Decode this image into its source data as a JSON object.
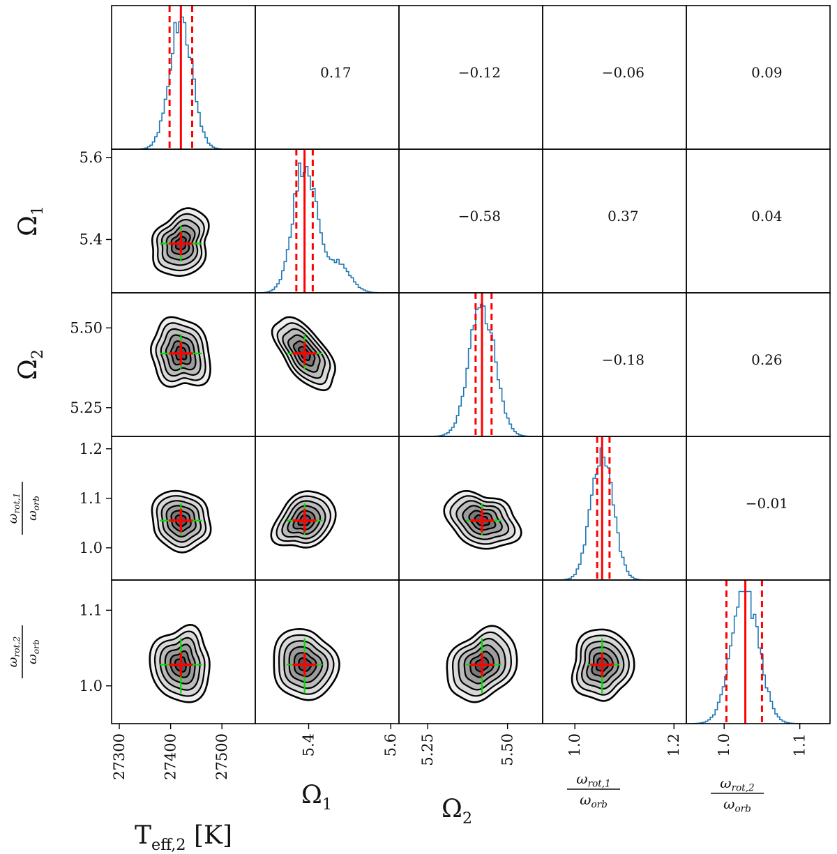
{
  "chart_data": {
    "type": "corner",
    "parameters": [
      {
        "key": "teff2",
        "label_main": "T",
        "label_sub": "eff,2",
        "label_unit": "[K]",
        "range": [
          27285,
          27565
        ],
        "ticks": [
          27300,
          27400,
          27500
        ],
        "tick_labels": [
          "27300",
          "27400",
          "27500"
        ],
        "median": 27420,
        "lower": 27398,
        "upper": 27442,
        "sigma": 22
      },
      {
        "key": "omega1",
        "label_main": "Ω",
        "label_sub": "1",
        "range": [
          5.27,
          5.62
        ],
        "ticks": [
          5.4,
          5.6
        ],
        "tick_labels": [
          "5.4",
          "5.6"
        ],
        "median": 5.39,
        "lower": 5.37,
        "upper": 5.41,
        "sigma": 0.028
      },
      {
        "key": "omega2",
        "label_main": "Ω",
        "label_sub": "2",
        "range": [
          5.16,
          5.61
        ],
        "ticks": [
          5.25,
          5.5
        ],
        "tick_labels": [
          "5.25",
          "5.50"
        ],
        "median": 5.42,
        "lower": 5.4,
        "upper": 5.45,
        "sigma": 0.04
      },
      {
        "key": "wrot1",
        "label_frac_num": "ω",
        "label_frac_num_sub": "rot,1",
        "label_frac_den": "ω",
        "label_frac_den_sub": "orb",
        "range": [
          0.935,
          1.225
        ],
        "ticks": [
          1.0,
          1.2
        ],
        "tick_labels": [
          "1.0",
          "1.2"
        ],
        "y_ticks": [
          1.0,
          1.1,
          1.2
        ],
        "y_tick_labels": [
          "1.0",
          "1.1",
          "1.2"
        ],
        "median": 1.055,
        "lower": 1.045,
        "upper": 1.07,
        "sigma": 0.022
      },
      {
        "key": "wrot2",
        "label_frac_num": "ω",
        "label_frac_num_sub": "rot,2",
        "label_frac_den": "ω",
        "label_frac_den_sub": "orb",
        "range": [
          0.95,
          1.14
        ],
        "ticks": [
          1.0,
          1.1
        ],
        "tick_labels": [
          "1.0",
          "1.1"
        ],
        "y_ticks": [
          1.0,
          1.1
        ],
        "y_tick_labels": [
          "1.0",
          "1.1"
        ],
        "median": 1.028,
        "lower": 1.003,
        "upper": 1.05,
        "sigma": 0.018
      }
    ],
    "correlations": [
      {
        "row": 0,
        "col": 1,
        "value": "0.17"
      },
      {
        "row": 0,
        "col": 2,
        "value": "−0.12"
      },
      {
        "row": 0,
        "col": 3,
        "value": "−0.06"
      },
      {
        "row": 0,
        "col": 4,
        "value": "0.09"
      },
      {
        "row": 1,
        "col": 2,
        "value": "−0.58"
      },
      {
        "row": 1,
        "col": 3,
        "value": "0.37"
      },
      {
        "row": 1,
        "col": 4,
        "value": "0.04"
      },
      {
        "row": 2,
        "col": 3,
        "value": "−0.18"
      },
      {
        "row": 2,
        "col": 4,
        "value": "0.26"
      },
      {
        "row": 3,
        "col": 4,
        "value": "−0.01"
      }
    ],
    "histogram_color": "#1f77b4",
    "median_line_color": "#ff0000",
    "errorbar_color": "#00dd00",
    "contour_fills": [
      "#f0f0f0",
      "#d8d8d8",
      "#bcbcbc",
      "#9c9c9c",
      "#7a7a7a",
      "#555555"
    ]
  }
}
